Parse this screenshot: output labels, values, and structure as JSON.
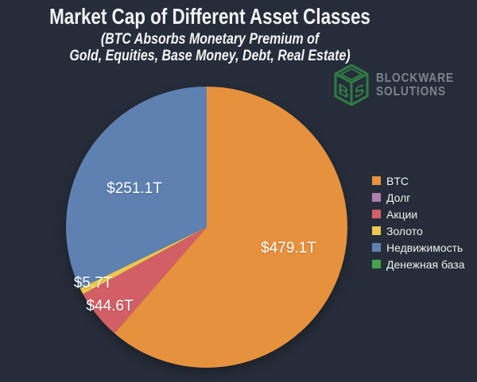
{
  "page": {
    "background_color": "#262c39"
  },
  "chart_data": {
    "type": "pie",
    "title": "Market Cap of Different Asset Classes",
    "subtitle_line1": "(BTC Absorbs Monetary Premium of",
    "subtitle_line2": "Gold, Equities, Base Money, Debt, Real Estate)",
    "legend_position": "right",
    "start_angle_deg": 0,
    "direction": "clockwise",
    "total": 780.5,
    "slices": [
      {
        "id": "btc",
        "label": "BTC",
        "value": 479.1,
        "value_label": "$479.1T",
        "color": "#e6913e",
        "label_angle_deg": 105,
        "label_r_frac": 0.6
      },
      {
        "id": "dolg",
        "label": "Долг",
        "value": 0,
        "value_label": "",
        "color": "#b17fae",
        "label_angle_deg": null,
        "label_r_frac": null
      },
      {
        "id": "akcii",
        "label": "Акции",
        "value": 44.6,
        "value_label": "$44.6T",
        "color": "#d25f66",
        "label_angle_deg": 230.5,
        "label_r_frac": 0.89
      },
      {
        "id": "zoloto",
        "label": "Золото",
        "value": 5.7,
        "value_label": "$5.7T",
        "color": "#e9c750",
        "label_angle_deg": 243.5,
        "label_r_frac": 0.9
      },
      {
        "id": "nedvizhimost",
        "label": "Недвижимость",
        "value": 251.1,
        "value_label": "$251.1T",
        "color": "#5e81b2",
        "label_angle_deg": 298,
        "label_r_frac": 0.58
      },
      {
        "id": "denezhnaya-baza",
        "label": "Денежная база",
        "value": 0,
        "value_label": "",
        "color": "#46a04c",
        "label_angle_deg": null,
        "label_r_frac": null
      }
    ]
  },
  "logo": {
    "icon": "blockware-cube-icon",
    "line1": "BLOCKWARE",
    "line2": "SOLUTIONS",
    "text_color": "#7d828c",
    "icon_color": "#2e7b44"
  }
}
